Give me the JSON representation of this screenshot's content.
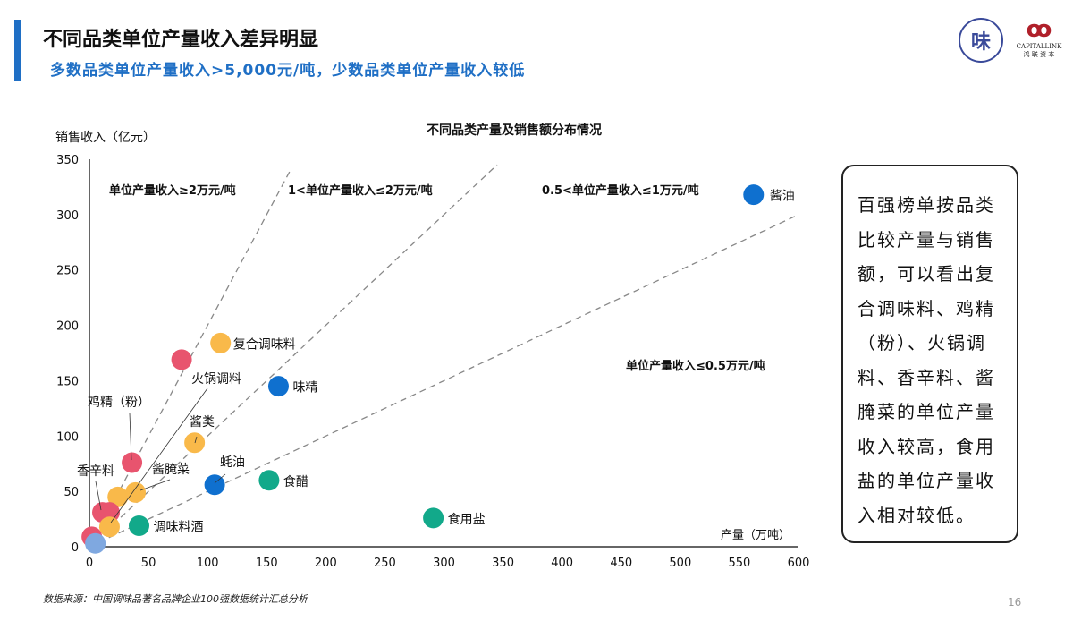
{
  "header": {
    "title": "不同品类单位产量收入差异明显",
    "subtitle": "多数品类单位产量收入>5,000元/吨，少数品类单位产量收入较低"
  },
  "logos": {
    "left": "味",
    "right_mark": "ꝏ",
    "right_text": "CAPITALLINK",
    "right_cn": "鸿 联 资 本"
  },
  "note": "百强榜单按品类比较产量与销售额，可以看出复合调味料、鸡精（粉）、火锅调料、香辛料、酱腌菜的单位产量收入较高，食用盐的单位产量收入相对较低。",
  "footer": {
    "source": "数据来源：中国调味品著名品牌企业100强数据统计汇总分析",
    "page": "16"
  },
  "colors": {
    "red": "#E8546E",
    "orange": "#F9B94A",
    "blue": "#0F70CF",
    "teal": "#12A98A",
    "lightblue": "#7FA8E0",
    "accent": "#1F6FC5"
  },
  "chart_data": {
    "type": "scatter",
    "title": "不同品类产量及销售额分布情况",
    "xlabel": "产量（万吨）",
    "ylabel": "销售收入（亿元）",
    "xlim": [
      0,
      600
    ],
    "ylim": [
      0,
      350
    ],
    "xticks": [
      "0",
      "50",
      "100",
      "150",
      "200",
      "250",
      "300",
      "350",
      "400",
      "450",
      "500",
      "550",
      "600"
    ],
    "yticks": [
      "0",
      "50",
      "100",
      "150",
      "200",
      "250",
      "300",
      "350"
    ],
    "grid": false,
    "points": [
      {
        "x": 562,
        "y": 318,
        "color": "blue",
        "label": "酱油"
      },
      {
        "x": 111,
        "y": 184,
        "color": "orange",
        "label": "复合调味料"
      },
      {
        "x": 78,
        "y": 169,
        "color": "red",
        "label": ""
      },
      {
        "x": 160,
        "y": 145,
        "color": "blue",
        "label": "味精"
      },
      {
        "x": 89,
        "y": 94,
        "color": "orange",
        "label": "酱类"
      },
      {
        "x": 36,
        "y": 76,
        "color": "red",
        "label": "鸡精（粉）"
      },
      {
        "x": 106,
        "y": 56,
        "color": "blue",
        "label": "蚝油"
      },
      {
        "x": 152,
        "y": 60,
        "color": "teal",
        "label": "食醋"
      },
      {
        "x": 291,
        "y": 26,
        "color": "teal",
        "label": "食用盐"
      },
      {
        "x": 42,
        "y": 19,
        "color": "teal",
        "label": "调味料酒"
      },
      {
        "x": 24,
        "y": 45,
        "color": "orange",
        "label": ""
      },
      {
        "x": 39,
        "y": 49,
        "color": "orange",
        "label": "酱腌菜"
      },
      {
        "x": 11,
        "y": 31,
        "color": "red",
        "label": "香辛料"
      },
      {
        "x": 17,
        "y": 31,
        "color": "red",
        "label": ""
      },
      {
        "x": 17,
        "y": 18,
        "color": "orange",
        "label": "火锅调料"
      },
      {
        "x": 2,
        "y": 9,
        "color": "red",
        "label": ""
      },
      {
        "x": 5,
        "y": 3,
        "color": "lightblue",
        "label": ""
      }
    ],
    "reference_lines": [
      {
        "slope": 2,
        "label": "单位产量收入≥2万元/吨"
      },
      {
        "slope": 1,
        "label": "1<单位产量收入≤2万元/吨"
      },
      {
        "slope": 0.5,
        "label": "0.5<单位产量收入≤1万元/吨"
      },
      {
        "slope": 0,
        "label": "单位产量收入≤0.5万元/吨"
      }
    ]
  }
}
